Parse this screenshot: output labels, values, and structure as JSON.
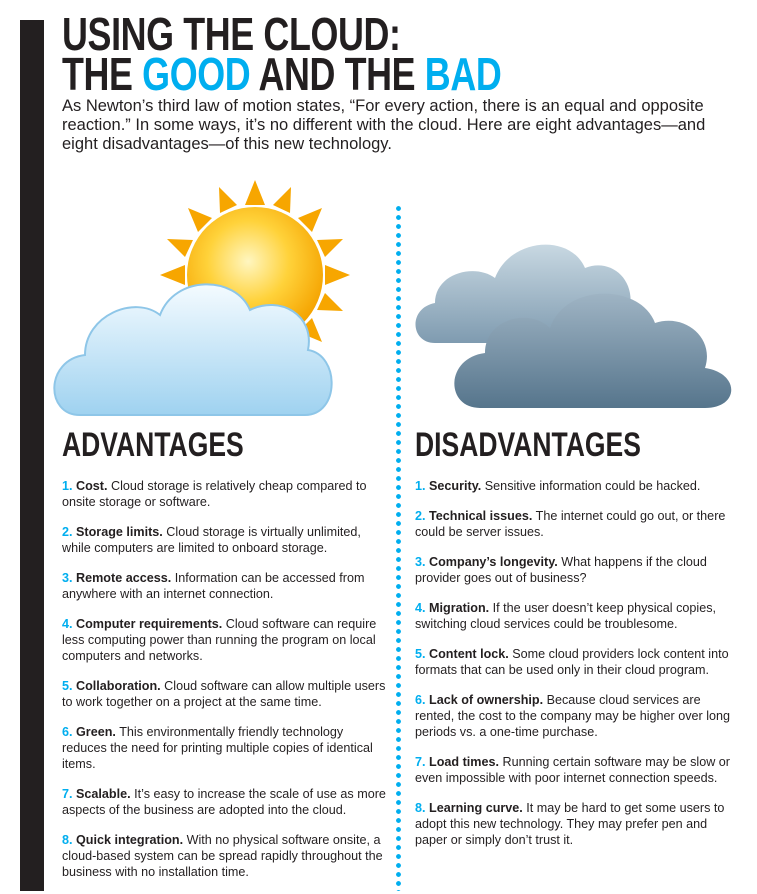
{
  "title": {
    "line1": "USING THE CLOUD:",
    "the1": "THE ",
    "good": "GOOD",
    "and_the": " AND THE ",
    "bad": "BAD"
  },
  "intro": "As Newton’s third law of motion states, “For every action, there is an equal and opposite reaction.” In some ways, it’s no different with the cloud. Here are eight advantages—and eight disadvantages—of this new technology.",
  "colors": {
    "accent": "#00aeef",
    "text": "#231f20"
  },
  "icons": {
    "left": "sun-behind-cloud-icon",
    "right": "storm-clouds-icon"
  },
  "advantages": {
    "heading": "ADVANTAGES",
    "items": [
      {
        "num": "1.",
        "label": "Cost.",
        "text": " Cloud storage is relatively cheap compared to onsite storage or software."
      },
      {
        "num": "2.",
        "label": "Storage limits.",
        "text": " Cloud storage is virtually unlimited, while computers are limited to onboard storage."
      },
      {
        "num": "3.",
        "label": "Remote access.",
        "text": " Information can be accessed from anywhere with an internet connection."
      },
      {
        "num": "4.",
        "label": "Computer requirements.",
        "text": " Cloud software can require less computing power than running the program on local computers and networks."
      },
      {
        "num": "5.",
        "label": "Collaboration.",
        "text": " Cloud software can allow multiple users to work together on a project at the same time."
      },
      {
        "num": "6.",
        "label": "Green.",
        "text": " This environmentally friendly technology reduces the need for printing multiple copies of identical items."
      },
      {
        "num": "7.",
        "label": "Scalable.",
        "text": " It’s easy to increase the scale of use as more aspects of the business are adopted into the cloud."
      },
      {
        "num": "8.",
        "label": "Quick integration.",
        "text": " With no physical software onsite, a cloud-based system can be spread rapidly throughout the business with no installation time."
      }
    ]
  },
  "disadvantages": {
    "heading": "DISADVANTAGES",
    "items": [
      {
        "num": "1.",
        "label": "Security.",
        "text": " Sensitive information could be hacked."
      },
      {
        "num": "2.",
        "label": "Technical issues.",
        "text": " The internet could go out, or there could be server issues."
      },
      {
        "num": "3.",
        "label": "Company’s longevity.",
        "text": " What happens if the cloud provider goes out of business?"
      },
      {
        "num": "4.",
        "label": "Migration.",
        "text": " If the user doesn’t keep physical copies, switching cloud services could be troublesome."
      },
      {
        "num": "5.",
        "label": "Content lock.",
        "text": " Some cloud providers lock content into formats that can be used only in their cloud program."
      },
      {
        "num": "6.",
        "label": "Lack of ownership.",
        "text": " Because cloud services are rented, the cost to the company may be higher over long periods vs. a one-time purchase."
      },
      {
        "num": "7.",
        "label": "Load times.",
        "text": " Running certain software may be slow or even impossible with poor internet connection speeds."
      },
      {
        "num": "8.",
        "label": "Learning curve.",
        "text": " It may be hard to get some users to adopt this new technology. They may prefer pen and paper or simply don’t trust it."
      }
    ]
  }
}
